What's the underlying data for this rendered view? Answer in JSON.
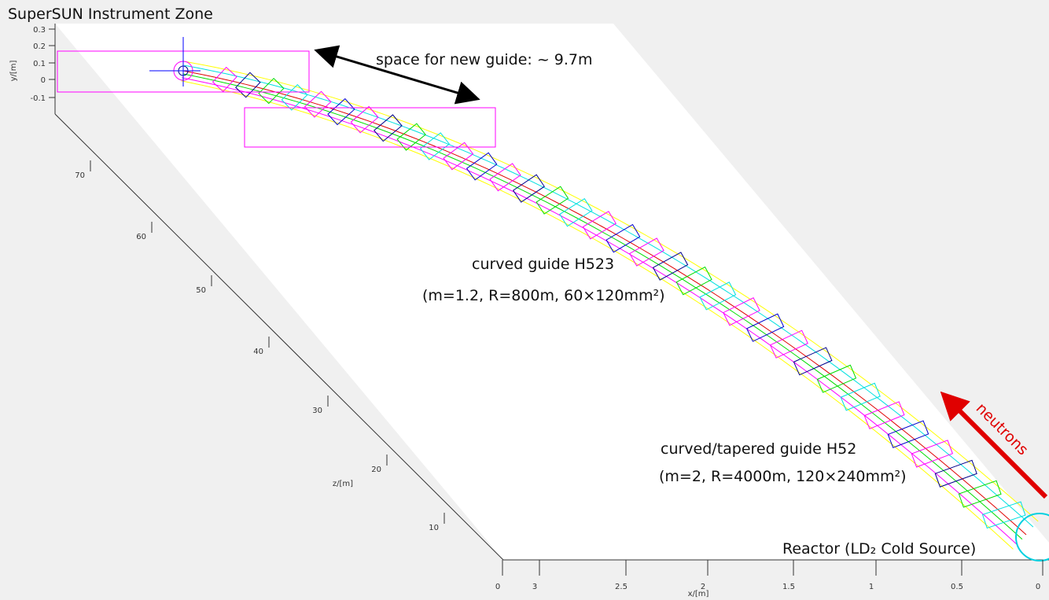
{
  "title": "SuperSUN Instrument Zone",
  "annotations": {
    "space": "space for new guide: ~ 9.7m",
    "h523_name": "curved guide H523",
    "h523_params": "(m=1.2, R=800m, 60×120mm²)",
    "h52_name": "curved/tapered guide H52",
    "h52_params": "(m=2, R=4000m, 120×240mm²)",
    "reactor": "Reactor (LD₂ Cold Source)",
    "neutrons": "neutrons"
  },
  "axes": {
    "y": {
      "label": "y/[m]",
      "ticks": [
        "0.3",
        "0.2",
        "0.1",
        "0",
        "-0.1"
      ]
    },
    "z": {
      "label": "z/[m]",
      "ticks": [
        "70",
        "60",
        "50",
        "40",
        "30",
        "20",
        "10"
      ]
    },
    "x": {
      "label": "x/[m]",
      "ticks": [
        "0",
        "3",
        "2.5",
        "2",
        "1.5",
        "1",
        "0.5",
        "0"
      ]
    }
  }
}
